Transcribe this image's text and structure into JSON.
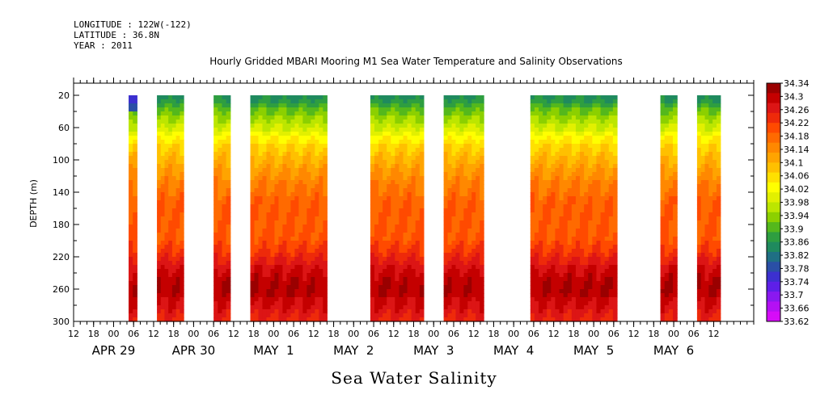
{
  "header": {
    "longitude": "LONGITUDE : 122W(-122)",
    "latitude": "LATITUDE : 36.8N",
    "year": "YEAR : 2011"
  },
  "chart_data": {
    "type": "heatmap",
    "title": "Hourly Gridded MBARI Mooring M1 Sea Water Temperature and Salinity Observations",
    "xlabel": "Sea Water Salinity",
    "ylabel": "DEPTH (m)",
    "y_ticks": [
      20,
      60,
      100,
      140,
      180,
      220,
      260,
      300
    ],
    "ylim": [
      300,
      5
    ],
    "x_hour_ticks": [
      "12",
      "18",
      "00",
      "06",
      "12",
      "18",
      "00",
      "06",
      "12",
      "18",
      "00",
      "06",
      "12",
      "18",
      "00",
      "06",
      "12",
      "18",
      "00",
      "06",
      "12",
      "18",
      "00",
      "06",
      "12",
      "18",
      "00",
      "06",
      "12",
      "18",
      "00",
      "06",
      "12"
    ],
    "x_day_labels": [
      {
        "label": "APR 29",
        "day": 0
      },
      {
        "label": "APR 30",
        "day": 1
      },
      {
        "label": "MAY  1",
        "day": 2
      },
      {
        "label": "MAY  2",
        "day": 3
      },
      {
        "label": "MAY  3",
        "day": 4
      },
      {
        "label": "MAY  4",
        "day": 5
      },
      {
        "label": "MAY  5",
        "day": 6
      },
      {
        "label": "MAY  6",
        "day": 7
      }
    ],
    "data_segments_hours_from_apr29_12": [
      {
        "start": 16.5,
        "end": 19
      },
      {
        "start": 25,
        "end": 33
      },
      {
        "start": 42,
        "end": 47
      },
      {
        "start": 53,
        "end": 76
      },
      {
        "start": 89,
        "end": 105
      },
      {
        "start": 111,
        "end": 123
      },
      {
        "start": 137,
        "end": 163
      },
      {
        "start": 176,
        "end": 181
      },
      {
        "start": 187,
        "end": 194
      }
    ],
    "depth_profile": [
      {
        "depth": 20,
        "value": 33.84
      },
      {
        "depth": 40,
        "value": 33.92
      },
      {
        "depth": 60,
        "value": 33.98
      },
      {
        "depth": 80,
        "value": 34.06
      },
      {
        "depth": 100,
        "value": 34.1
      },
      {
        "depth": 120,
        "value": 34.14
      },
      {
        "depth": 140,
        "value": 34.17
      },
      {
        "depth": 160,
        "value": 34.19
      },
      {
        "depth": 180,
        "value": 34.19
      },
      {
        "depth": 200,
        "value": 34.2
      },
      {
        "depth": 220,
        "value": 34.24
      },
      {
        "depth": 240,
        "value": 34.29
      },
      {
        "depth": 260,
        "value": 34.31
      },
      {
        "depth": 280,
        "value": 34.28
      },
      {
        "depth": 300,
        "value": 34.24
      }
    ],
    "colorbar": {
      "labels": [
        "34.34",
        "34.3",
        "34.26",
        "34.22",
        "34.18",
        "34.14",
        "34.1",
        "34.06",
        "34.02",
        "33.98",
        "33.94",
        "33.9",
        "33.86",
        "33.82",
        "33.78",
        "33.74",
        "33.7",
        "33.66",
        "33.62"
      ],
      "colors": [
        "#9a0000",
        "#c40000",
        "#dc1515",
        "#ee2a0a",
        "#ff4a00",
        "#ff6a00",
        "#ff8800",
        "#ffa400",
        "#ffc000",
        "#ffe000",
        "#ffff00",
        "#e2f000",
        "#bce600",
        "#8cd000",
        "#54b81c",
        "#2e9e40",
        "#1f8a5e",
        "#1f6f84",
        "#2a4fa6",
        "#3c30d0",
        "#5e1fe8",
        "#8a18f0",
        "#b410f4",
        "#d60cf8"
      ]
    }
  }
}
